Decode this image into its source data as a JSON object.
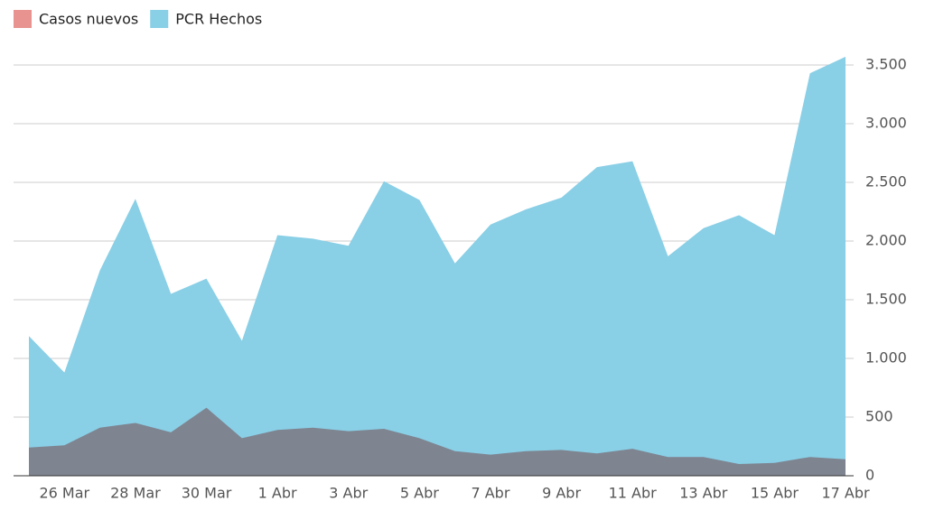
{
  "chart_data": {
    "type": "area",
    "categories": [
      null,
      "26 Mar",
      null,
      "28 Mar",
      null,
      "30 Mar",
      null,
      "1 Abr",
      null,
      "3 Abr",
      null,
      "5 Abr",
      null,
      "7 Abr",
      null,
      "9 Abr",
      null,
      "11 Abr",
      null,
      "13 Abr",
      null,
      "15 Abr",
      null,
      "17 Abr"
    ],
    "series": [
      {
        "name": "Casos nuevos",
        "color": "#e8938f",
        "values": [
          240,
          260,
          410,
          450,
          370,
          580,
          320,
          390,
          410,
          380,
          400,
          320,
          210,
          180,
          210,
          220,
          190,
          230,
          160,
          160,
          100,
          110,
          160,
          140
        ]
      },
      {
        "name": "PCR Hechos",
        "color": "#89cfe6",
        "values": [
          1190,
          880,
          1750,
          2360,
          1550,
          1680,
          1150,
          2050,
          2020,
          1960,
          2510,
          2350,
          1810,
          2140,
          2270,
          2370,
          2630,
          2680,
          1870,
          2110,
          2220,
          2050,
          3430,
          3570
        ]
      }
    ],
    "ylim": [
      0,
      3500
    ],
    "yticks": [
      0,
      500,
      {
        "value": 1000,
        "label": "1.000"
      },
      {
        "value": 1500,
        "label": "1.500"
      },
      {
        "value": 2000,
        "label": "2.000"
      },
      {
        "value": 2500,
        "label": "2.500"
      },
      {
        "value": 3000,
        "label": "3.000"
      },
      {
        "value": 3500,
        "label": "3.500"
      }
    ],
    "grid": true,
    "legend": "top-left",
    "y_axis_side": "right"
  }
}
